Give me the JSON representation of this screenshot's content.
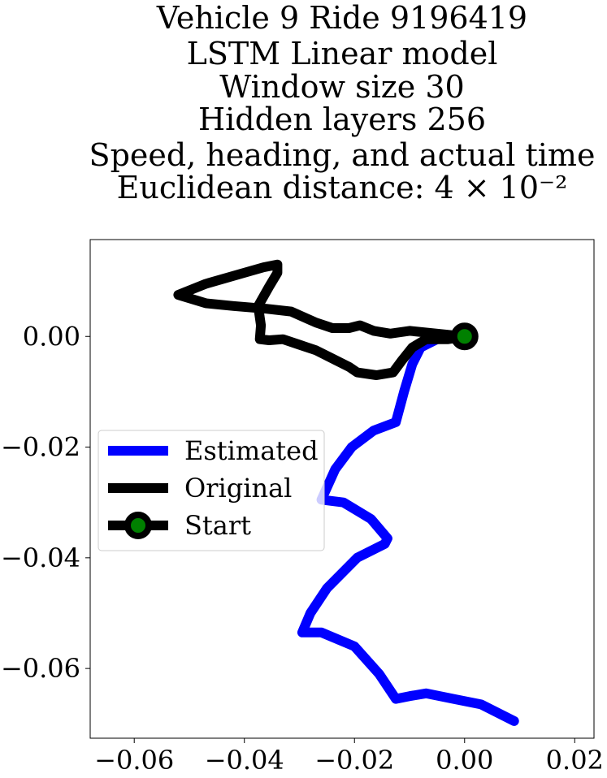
{
  "chart_data": {
    "type": "line",
    "title_lines": [
      "Vehicle 9 Ride 9196419",
      "LSTM Linear model",
      "Window size 30",
      "Hidden layers 256",
      "Speed, heading, and actual time",
      "Euclidean distance: 4 × 10⁻²"
    ],
    "xlabel": "",
    "ylabel": "",
    "xlim": [
      -0.068,
      0.0235
    ],
    "ylim": [
      -0.0726,
      0.0175
    ],
    "x_ticks": [
      -0.06,
      -0.04,
      -0.02,
      0.0,
      0.02
    ],
    "x_tick_labels": [
      "−0.06",
      "−0.04",
      "−0.02",
      "0.00",
      "0.02"
    ],
    "y_ticks": [
      0.0,
      -0.02,
      -0.04,
      -0.06
    ],
    "y_tick_labels": [
      "0.00",
      "−0.02",
      "−0.04",
      "−0.06"
    ],
    "grid": false,
    "legend_position": "center-left",
    "series": [
      {
        "name": "Estimated",
        "color": "#0000ff",
        "style": "line",
        "points": [
          [
            0.0,
            0.0
          ],
          [
            -0.004,
            0.0
          ],
          [
            -0.008,
            -0.002
          ],
          [
            -0.0095,
            -0.005
          ],
          [
            -0.011,
            -0.01
          ],
          [
            -0.0125,
            -0.0155
          ],
          [
            -0.0165,
            -0.017
          ],
          [
            -0.0205,
            -0.02
          ],
          [
            -0.0235,
            -0.024
          ],
          [
            -0.026,
            -0.0295
          ],
          [
            -0.022,
            -0.03
          ],
          [
            -0.017,
            -0.033
          ],
          [
            -0.014,
            -0.0365
          ],
          [
            -0.0145,
            -0.0375
          ],
          [
            -0.0195,
            -0.04
          ],
          [
            -0.025,
            -0.0455
          ],
          [
            -0.028,
            -0.05
          ],
          [
            -0.0295,
            -0.0535
          ],
          [
            -0.026,
            -0.0535
          ],
          [
            -0.02,
            -0.056
          ],
          [
            -0.0155,
            -0.061
          ],
          [
            -0.0125,
            -0.0655
          ],
          [
            -0.01,
            -0.065
          ],
          [
            -0.007,
            -0.0645
          ],
          [
            -0.002,
            -0.0655
          ],
          [
            0.003,
            -0.0665
          ],
          [
            0.009,
            -0.0695
          ]
        ]
      },
      {
        "name": "Original",
        "color": "#000000",
        "style": "line",
        "points": [
          [
            0.0,
            0.0
          ],
          [
            -0.005,
            0.0005
          ],
          [
            -0.01,
            0.001
          ],
          [
            -0.0135,
            0.0005
          ],
          [
            -0.0165,
            0.001
          ],
          [
            -0.019,
            0.002
          ],
          [
            -0.021,
            0.0015
          ],
          [
            -0.024,
            0.0015
          ],
          [
            -0.027,
            0.0025
          ],
          [
            -0.0315,
            0.0045
          ],
          [
            -0.036,
            0.005
          ],
          [
            -0.042,
            0.0055
          ],
          [
            -0.047,
            0.006
          ],
          [
            -0.052,
            0.0075
          ],
          [
            -0.047,
            0.0095
          ],
          [
            -0.04,
            0.0115
          ],
          [
            -0.0365,
            0.0125
          ],
          [
            -0.034,
            0.013
          ],
          [
            -0.034,
            0.0115
          ],
          [
            -0.0355,
            0.009
          ],
          [
            -0.0375,
            0.0055
          ],
          [
            -0.037,
            0.002
          ],
          [
            -0.0372,
            -0.0005
          ],
          [
            -0.0355,
            -0.0007
          ],
          [
            -0.033,
            -0.0005
          ],
          [
            -0.03,
            -0.0015
          ],
          [
            -0.027,
            -0.0025
          ],
          [
            -0.024,
            -0.004
          ],
          [
            -0.021,
            -0.0055
          ],
          [
            -0.0195,
            -0.0065
          ],
          [
            -0.016,
            -0.007
          ],
          [
            -0.013,
            -0.0065
          ],
          [
            -0.0115,
            -0.0045
          ],
          [
            -0.0095,
            -0.002
          ],
          [
            -0.007,
            -0.0005
          ],
          [
            -0.003,
            -0.0005
          ],
          [
            0.0,
            0.0
          ]
        ]
      },
      {
        "name": "Start",
        "color": "#000000",
        "marker_face_color": "#008000",
        "style": "marker",
        "points": [
          [
            0.0,
            0.0
          ]
        ]
      }
    ]
  }
}
